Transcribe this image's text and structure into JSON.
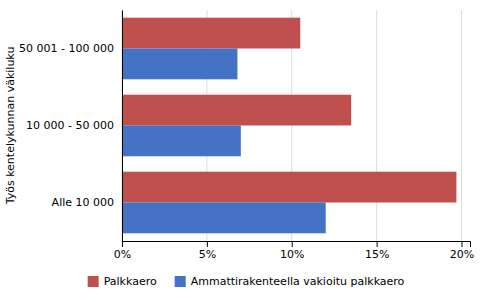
{
  "chart_data": {
    "type": "bar",
    "orientation": "horizontal",
    "categories": [
      "Alle 10 000",
      "10 000 - 50 000",
      "50 001 - 100 000"
    ],
    "series": [
      {
        "name": "Palkkaero",
        "color": "#C0504D",
        "values": [
          0.197,
          0.135,
          0.105
        ]
      },
      {
        "name": "Ammattirakenteella vakioitu palkkaero",
        "color": "#4472C4",
        "values": [
          0.12,
          0.07,
          0.068
        ]
      }
    ],
    "ylabel": "Työs kentelykunnan väkiluku",
    "xlim": [
      0,
      0.205
    ],
    "xticks": [
      {
        "value": 0.0,
        "label": "0%"
      },
      {
        "value": 0.05,
        "label": "5%"
      },
      {
        "value": 0.1,
        "label": "10%"
      },
      {
        "value": 0.15,
        "label": "15%"
      },
      {
        "value": 0.2,
        "label": "20%"
      }
    ],
    "grid": true,
    "legend": "bottom"
  }
}
